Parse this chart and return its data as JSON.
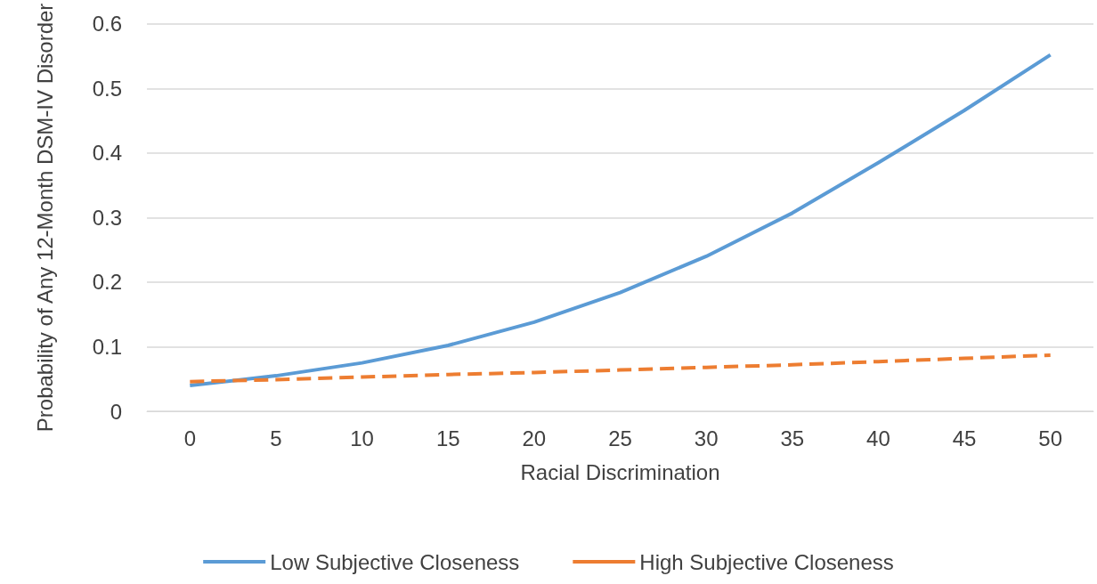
{
  "chart_data": {
    "type": "line",
    "xlabel": "Racial Discrimination",
    "ylabel": "Probability of Any 12-Month DSM-IV Disorder",
    "categories": [
      "0",
      "5",
      "10",
      "15",
      "20",
      "25",
      "30",
      "35",
      "40",
      "45",
      "50"
    ],
    "series": [
      {
        "name": "Low Subjective Closeness",
        "color": "#5b9bd5",
        "line_style": "solid",
        "values": [
          0.04,
          0.055,
          0.075,
          0.102,
          0.138,
          0.184,
          0.24,
          0.307,
          0.385,
          0.466,
          0.552
        ]
      },
      {
        "name": "High Subjective Closeness",
        "color": "#ed7d31",
        "line_style": "dashed",
        "values": [
          0.046,
          0.049,
          0.053,
          0.057,
          0.06,
          0.064,
          0.068,
          0.072,
          0.077,
          0.082,
          0.087
        ]
      }
    ],
    "ylim": [
      0,
      0.6
    ],
    "yticks": [
      0,
      0.1,
      0.2,
      0.3,
      0.4,
      0.5,
      0.6
    ],
    "grid": "y",
    "legend": "bottom",
    "marker": "none"
  }
}
